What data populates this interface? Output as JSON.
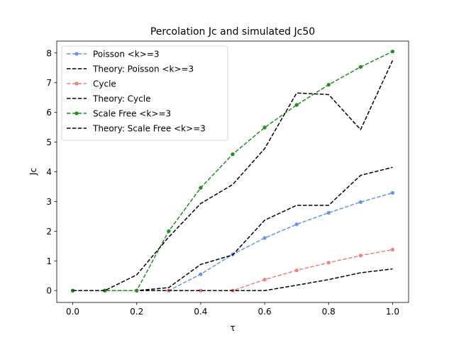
{
  "chart_data": {
    "type": "line",
    "title": "Percolation Jc and simulated Jc50",
    "xlabel": "τ",
    "ylabel": "Jc",
    "xlim": [
      -0.05,
      1.05
    ],
    "ylim": [
      -0.4,
      8.4
    ],
    "xticks": [
      0.0,
      0.2,
      0.4,
      0.6,
      0.8,
      1.0
    ],
    "xtick_labels": [
      "0.0",
      "0.2",
      "0.4",
      "0.6",
      "0.8",
      "1.0"
    ],
    "yticks": [
      0,
      1,
      2,
      3,
      4,
      5,
      6,
      7,
      8
    ],
    "ytick_labels": [
      "0",
      "1",
      "2",
      "3",
      "4",
      "5",
      "6",
      "7",
      "8"
    ],
    "grid": false,
    "legend_position": "top-left",
    "x": [
      0.0,
      0.1,
      0.2,
      0.3,
      0.4,
      0.5,
      0.6,
      0.7,
      0.8,
      0.9,
      1.0
    ],
    "series": [
      {
        "name": "Poisson <k>=3",
        "color": "#6495ed",
        "style": "dashed",
        "marker": true,
        "values": [
          0.0,
          0.0,
          0.0,
          0.0,
          0.55,
          1.22,
          1.77,
          2.23,
          2.62,
          2.98,
          3.29
        ]
      },
      {
        "name": "Theory: Poisson <k>=3",
        "color": "#000000",
        "style": "dashed",
        "marker": false,
        "values": [
          0.0,
          0.0,
          0.0,
          0.1,
          0.88,
          1.2,
          2.37,
          2.87,
          2.87,
          3.88,
          4.15
        ]
      },
      {
        "name": "Cycle",
        "color": "#f08080",
        "style": "dashed",
        "marker": true,
        "values": [
          0.0,
          0.0,
          0.0,
          0.0,
          0.0,
          0.0,
          0.37,
          0.68,
          0.94,
          1.18,
          1.38
        ]
      },
      {
        "name": "Theory: Cycle",
        "color": "#000000",
        "style": "dashed",
        "marker": false,
        "values": [
          0.0,
          0.0,
          0.0,
          0.0,
          0.0,
          0.0,
          0.0,
          0.18,
          0.37,
          0.6,
          0.73
        ]
      },
      {
        "name": "Scale Free <k>=3",
        "color": "#228b22",
        "style": "dashed",
        "marker": true,
        "values": [
          0.0,
          0.0,
          0.0,
          2.0,
          3.46,
          4.59,
          5.49,
          6.25,
          6.93,
          7.53,
          8.05
        ]
      },
      {
        "name": "Theory: Scale Free <k>=3",
        "color": "#000000",
        "style": "dashed",
        "marker": false,
        "values": [
          0.0,
          0.0,
          0.53,
          1.8,
          2.93,
          3.57,
          4.78,
          6.65,
          6.6,
          5.42,
          7.75
        ]
      }
    ]
  }
}
